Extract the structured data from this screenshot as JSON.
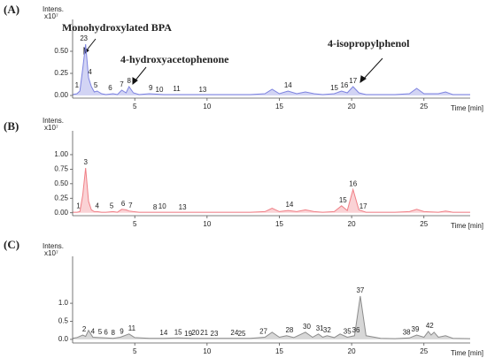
{
  "chart_data": [
    {
      "type": "line",
      "panel_label": "(A)",
      "y_label": "Intens.",
      "y_unit": "x10⁷",
      "x_label": "Time [min]",
      "color": "#7d83e0",
      "xlim": [
        0.7,
        28.2
      ],
      "xticks": [
        5,
        10,
        15,
        20,
        25
      ],
      "ylim": [
        -0.03,
        0.86
      ],
      "yticks": [
        {
          "value": 0,
          "label": "0.00"
        },
        {
          "value": 0.25,
          "label": "0.25"
        },
        {
          "value": 0.5,
          "label": "0.50"
        }
      ],
      "x": [
        0.7,
        1.0,
        1.2,
        1.4,
        1.6,
        1.8,
        2.0,
        2.2,
        2.4,
        2.7,
        3.0,
        3.5,
        3.8,
        4.1,
        4.4,
        4.6,
        4.9,
        5.3,
        6,
        7,
        8,
        9,
        10,
        11,
        12,
        13,
        14,
        14.5,
        15,
        15.6,
        16.2,
        16.8,
        17.4,
        18,
        18.8,
        19.3,
        19.7,
        20.1,
        20.5,
        21,
        22,
        23,
        24,
        24.5,
        25,
        26,
        26.5,
        27,
        28.2
      ],
      "values": [
        0.01,
        0.02,
        0.05,
        0.3,
        0.58,
        0.2,
        0.1,
        0.04,
        0.05,
        0.02,
        0.01,
        0.02,
        0.01,
        0.06,
        0.03,
        0.1,
        0.03,
        0.01,
        0.02,
        0.01,
        0.01,
        0.01,
        0.01,
        0.01,
        0.01,
        0.01,
        0.02,
        0.07,
        0.02,
        0.05,
        0.02,
        0.04,
        0.02,
        0.01,
        0.02,
        0.05,
        0.03,
        0.1,
        0.03,
        0.01,
        0.01,
        0.01,
        0.02,
        0.08,
        0.02,
        0.02,
        0.04,
        0.01,
        0.01
      ],
      "peak_labels": [
        {
          "label": "1",
          "x": 1.0
        },
        {
          "label": "2",
          "x": 1.35
        },
        {
          "label": "3",
          "x": 1.6
        },
        {
          "label": "4",
          "x": 1.9
        },
        {
          "label": "5",
          "x": 2.3
        },
        {
          "label": "6",
          "x": 3.3
        },
        {
          "label": "7",
          "x": 4.1
        },
        {
          "label": "8",
          "x": 4.6
        },
        {
          "label": "9",
          "x": 6.1
        },
        {
          "label": "10",
          "x": 6.7
        },
        {
          "label": "11",
          "x": 7.9
        },
        {
          "label": "13",
          "x": 9.7
        },
        {
          "label": "14",
          "x": 15.6
        },
        {
          "label": "15",
          "x": 18.8
        },
        {
          "label": "16",
          "x": 19.5
        },
        {
          "label": "17",
          "x": 20.1
        }
      ],
      "annotations": [
        "Monohydroxylated BPA",
        "4-hydroxyacetophenone",
        "4-isopropylphenol"
      ]
    },
    {
      "type": "line",
      "panel_label": "(B)",
      "y_label": "Intens.",
      "y_unit": "x10⁷",
      "x_label": "Time [min]",
      "color": "#f07f86",
      "xlim": [
        0.7,
        28.2
      ],
      "xticks": [
        5,
        10,
        15,
        20,
        25
      ],
      "ylim": [
        -0.05,
        1.41
      ],
      "yticks": [
        {
          "value": 0,
          "label": "0.00"
        },
        {
          "value": 0.25,
          "label": "0.25"
        },
        {
          "value": 0.5,
          "label": "0.50"
        },
        {
          "value": 0.75,
          "label": "0.75"
        },
        {
          "value": 1,
          "label": "1.00"
        }
      ],
      "x": [
        0.7,
        1.0,
        1.2,
        1.4,
        1.6,
        1.8,
        2.0,
        2.2,
        2.4,
        2.7,
        3.0,
        3.5,
        3.8,
        4.1,
        4.4,
        4.6,
        4.9,
        5.3,
        6,
        7,
        8,
        9,
        10,
        11,
        12,
        13,
        14,
        14.5,
        15,
        15.6,
        16.2,
        16.8,
        17.4,
        18,
        18.8,
        19.3,
        19.7,
        20.1,
        20.5,
        21,
        22,
        23,
        24,
        24.5,
        25,
        26,
        26.5,
        27,
        28.2
      ],
      "values": [
        0.01,
        0.01,
        0.02,
        0.3,
        0.77,
        0.2,
        0.05,
        0.02,
        0.02,
        0.01,
        0.01,
        0.02,
        0.01,
        0.06,
        0.05,
        0.03,
        0.02,
        0.01,
        0.01,
        0.01,
        0.01,
        0.01,
        0.01,
        0.01,
        0.01,
        0.01,
        0.02,
        0.08,
        0.02,
        0.04,
        0.02,
        0.05,
        0.02,
        0.01,
        0.02,
        0.12,
        0.04,
        0.4,
        0.05,
        0.01,
        0.01,
        0.01,
        0.02,
        0.06,
        0.02,
        0.01,
        0.03,
        0.01,
        0.01
      ],
      "peak_labels": [
        {
          "label": "1",
          "x": 1.1
        },
        {
          "label": "3",
          "x": 1.6
        },
        {
          "label": "4",
          "x": 2.4
        },
        {
          "label": "5",
          "x": 3.4
        },
        {
          "label": "6",
          "x": 4.2
        },
        {
          "label": "7",
          "x": 4.7
        },
        {
          "label": "8",
          "x": 6.4
        },
        {
          "label": "10",
          "x": 6.9
        },
        {
          "label": "13",
          "x": 8.3
        },
        {
          "label": "14",
          "x": 15.7
        },
        {
          "label": "15",
          "x": 19.4
        },
        {
          "label": "16",
          "x": 20.1
        },
        {
          "label": "17",
          "x": 20.8
        }
      ]
    },
    {
      "type": "line",
      "panel_label": "(C)",
      "y_label": "Intens.",
      "y_unit": "x10⁷",
      "x_label": "Time [min]",
      "color": "#8c8c8c",
      "xlim": [
        0.7,
        28.2
      ],
      "xticks": [
        5,
        10,
        15,
        20,
        25
      ],
      "ylim": [
        -0.1,
        2.3
      ],
      "yticks": [
        {
          "value": 0,
          "label": "0.0"
        },
        {
          "value": 0.5,
          "label": "0.5"
        },
        {
          "value": 1,
          "label": "1.0"
        }
      ],
      "x": [
        0.7,
        1.0,
        1.4,
        1.6,
        1.8,
        2.1,
        2.5,
        3,
        3.5,
        4,
        4.6,
        5,
        6,
        7,
        8,
        9,
        10,
        11,
        12,
        13,
        14,
        14.5,
        15,
        15.5,
        16,
        16.8,
        17.3,
        17.7,
        18,
        18.3,
        18.8,
        19.2,
        19.7,
        20.2,
        20.6,
        21,
        22,
        23,
        24,
        24.5,
        25,
        25.3,
        25.5,
        25.7,
        26,
        26.5,
        27,
        28.2
      ],
      "values": [
        0.03,
        0.05,
        0.12,
        0.08,
        0.25,
        0.06,
        0.05,
        0.04,
        0.03,
        0.06,
        0.15,
        0.05,
        0.03,
        0.03,
        0.04,
        0.03,
        0.03,
        0.03,
        0.03,
        0.03,
        0.06,
        0.2,
        0.06,
        0.1,
        0.05,
        0.2,
        0.06,
        0.15,
        0.06,
        0.1,
        0.05,
        0.15,
        0.06,
        0.1,
        1.2,
        0.1,
        0.03,
        0.02,
        0.04,
        0.12,
        0.06,
        0.22,
        0.12,
        0.2,
        0.06,
        0.1,
        0.03,
        0.02
      ],
      "peak_labels": [
        {
          "label": "2",
          "x": 1.5
        },
        {
          "label": "4",
          "x": 2.1
        },
        {
          "label": "5",
          "x": 2.6
        },
        {
          "label": "6",
          "x": 3.0
        },
        {
          "label": "8",
          "x": 3.5
        },
        {
          "label": "9",
          "x": 4.1
        },
        {
          "label": "11",
          "x": 4.8
        },
        {
          "label": "14",
          "x": 7.0
        },
        {
          "label": "15",
          "x": 8.0
        },
        {
          "label": "19",
          "x": 8.7
        },
        {
          "label": "20",
          "x": 9.2
        },
        {
          "label": "21",
          "x": 9.8
        },
        {
          "label": "23",
          "x": 10.5
        },
        {
          "label": "24",
          "x": 11.9
        },
        {
          "label": "25",
          "x": 12.4
        },
        {
          "label": "27",
          "x": 13.9
        },
        {
          "label": "28",
          "x": 15.7
        },
        {
          "label": "30",
          "x": 16.9
        },
        {
          "label": "31",
          "x": 17.8
        },
        {
          "label": "32",
          "x": 18.3
        },
        {
          "label": "35",
          "x": 19.7
        },
        {
          "label": "36",
          "x": 20.3
        },
        {
          "label": "37",
          "x": 20.6
        },
        {
          "label": "38",
          "x": 23.8
        },
        {
          "label": "39",
          "x": 24.4
        },
        {
          "label": "42",
          "x": 25.4
        }
      ]
    }
  ]
}
